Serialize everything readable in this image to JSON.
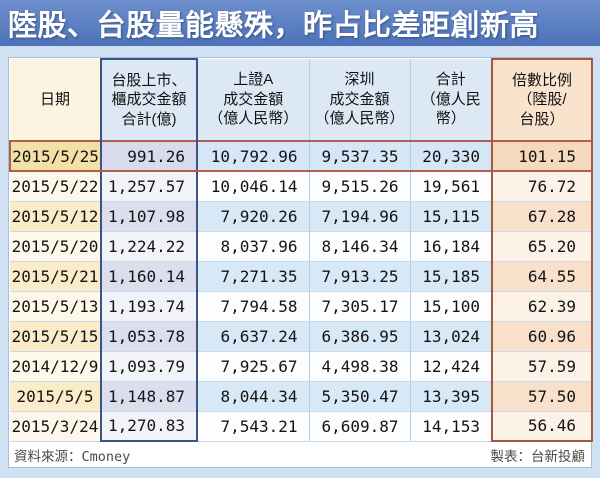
{
  "title": "陸股、台股量能懸殊，昨占比差距創新高",
  "table": {
    "headers": [
      "日期",
      "台股上市、\n櫃成交金額\n合計(億)",
      "上證A\n成交金額\n（億人民幣）",
      "深圳\n成交金額\n（億人民幣）",
      "合計\n（億人民\n幣）",
      "倍數比例\n（陸股/\n台股）"
    ],
    "rows": [
      {
        "date": "2015/5/25",
        "taiwan": "991.26",
        "shanghai": "10,792.96",
        "shenzhen": "9,537.35",
        "total": "20,330",
        "ratio": "101.15",
        "highlight": true
      },
      {
        "date": "2015/5/22",
        "taiwan": "1,257.57",
        "shanghai": "10,046.14",
        "shenzhen": "9,515.26",
        "total": "19,561",
        "ratio": "76.72",
        "highlight": false
      },
      {
        "date": "2015/5/12",
        "taiwan": "1,107.98",
        "shanghai": "7,920.26",
        "shenzhen": "7,194.96",
        "total": "15,115",
        "ratio": "67.28",
        "highlight": false
      },
      {
        "date": "2015/5/20",
        "taiwan": "1,224.22",
        "shanghai": "8,037.96",
        "shenzhen": "8,146.34",
        "total": "16,184",
        "ratio": "65.20",
        "highlight": false
      },
      {
        "date": "2015/5/21",
        "taiwan": "1,160.14",
        "shanghai": "7,271.35",
        "shenzhen": "7,913.25",
        "total": "15,185",
        "ratio": "64.55",
        "highlight": false
      },
      {
        "date": "2015/5/13",
        "taiwan": "1,193.74",
        "shanghai": "7,794.58",
        "shenzhen": "7,305.17",
        "total": "15,100",
        "ratio": "62.39",
        "highlight": false
      },
      {
        "date": "2015/5/15",
        "taiwan": "1,053.78",
        "shanghai": "6,637.24",
        "shenzhen": "6,386.95",
        "total": "13,024",
        "ratio": "60.96",
        "highlight": false
      },
      {
        "date": "2014/12/9",
        "taiwan": "1,093.79",
        "shanghai": "7,925.67",
        "shenzhen": "4,498.38",
        "total": "12,424",
        "ratio": "57.59",
        "highlight": false
      },
      {
        "date": "2015/5/5",
        "taiwan": "1,148.87",
        "shanghai": "8,044.34",
        "shenzhen": "5,350.47",
        "total": "13,395",
        "ratio": "57.50",
        "highlight": false
      },
      {
        "date": "2015/3/24",
        "taiwan": "1,270.83",
        "shanghai": "7,543.21",
        "shenzhen": "6,609.87",
        "total": "14,153",
        "ratio": "56.46",
        "highlight": false
      }
    ]
  },
  "footer": {
    "source": "資料來源：Cmoney",
    "credit": "製表：台新投顧"
  },
  "colors": {
    "banner_blue": "#5b7fc4",
    "page_background": "#cfe1f2",
    "navy_column_border": "#3a5584",
    "maroon_column_border": "#a5573f",
    "highlight_row_border": "#b05f4e",
    "date_tint": "#faecc8",
    "taiwan_tint": "#dcdeee",
    "china_tint": "#d7e8f6",
    "ratio_tint": "#f8e0ca"
  },
  "chart_data": {
    "type": "table",
    "title": "陸股、台股量能懸殊，昨占比差距創新高",
    "columns": [
      "日期",
      "台股上市、櫃成交金額合計(億)",
      "上證A成交金額（億人民幣）",
      "深圳成交金額（億人民幣）",
      "合計（億人民幣）",
      "倍數比例（陸股/台股）"
    ],
    "rows": [
      [
        "2015/5/25",
        991.26,
        10792.96,
        9537.35,
        20330,
        101.15
      ],
      [
        "2015/5/22",
        1257.57,
        10046.14,
        9515.26,
        19561,
        76.72
      ],
      [
        "2015/5/12",
        1107.98,
        7920.26,
        7194.96,
        15115,
        67.28
      ],
      [
        "2015/5/20",
        1224.22,
        8037.96,
        8146.34,
        16184,
        65.2
      ],
      [
        "2015/5/21",
        1160.14,
        7271.35,
        7913.25,
        15185,
        64.55
      ],
      [
        "2015/5/13",
        1193.74,
        7794.58,
        7305.17,
        15100,
        62.39
      ],
      [
        "2015/5/15",
        1053.78,
        6637.24,
        6386.95,
        13024,
        60.96
      ],
      [
        "2014/12/9",
        1093.79,
        7925.67,
        4498.38,
        12424,
        57.59
      ],
      [
        "2015/5/5",
        1148.87,
        8044.34,
        5350.47,
        13395,
        57.5
      ],
      [
        "2015/3/24",
        1270.83,
        7543.21,
        6609.87,
        14153,
        56.46
      ]
    ],
    "highlighted_row": "2015/5/25",
    "source": "Cmoney",
    "prepared_by": "台新投顧"
  }
}
